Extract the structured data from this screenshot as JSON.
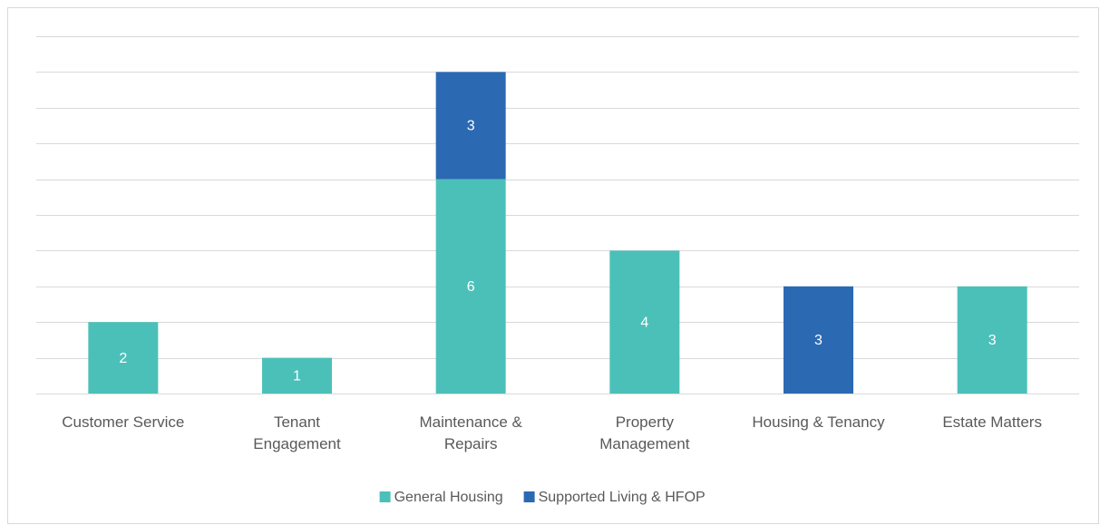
{
  "chart_data": {
    "type": "stacked_bar",
    "categories": [
      "Customer Service",
      "Tenant\nEngagement",
      "Maintenance &\nRepairs",
      "Property\nManagement",
      "Housing & Tenancy",
      "Estate Matters"
    ],
    "series": [
      {
        "name": "General Housing",
        "color": "#4bc0b8",
        "values": [
          2,
          1,
          6,
          4,
          null,
          3
        ]
      },
      {
        "name": "Supported Living & HFOP",
        "color": "#2b69b3",
        "values": [
          null,
          null,
          3,
          null,
          3,
          null
        ]
      }
    ],
    "ylim": [
      0,
      10
    ],
    "yticks": [
      0,
      1,
      2,
      3,
      4,
      5,
      6,
      7,
      8,
      9,
      10
    ],
    "grid": true,
    "legend": "bottom"
  }
}
